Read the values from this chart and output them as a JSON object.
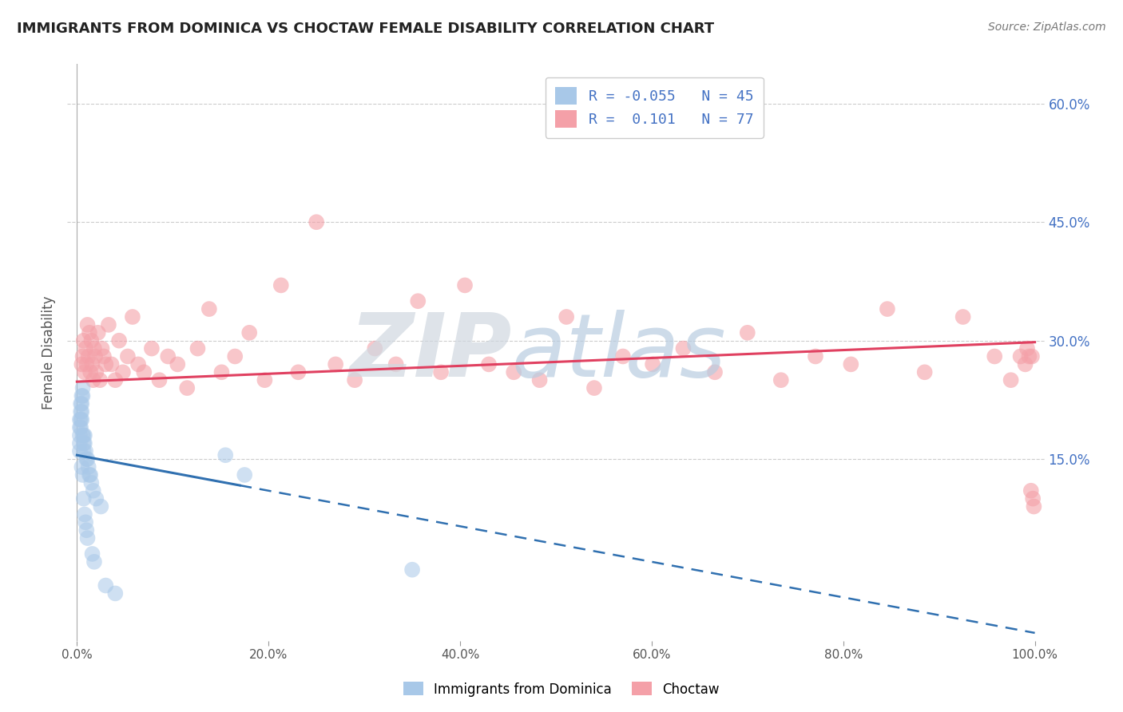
{
  "title": "IMMIGRANTS FROM DOMINICA VS CHOCTAW FEMALE DISABILITY CORRELATION CHART",
  "source": "Source: ZipAtlas.com",
  "ylabel": "Female Disability",
  "legend_labels": [
    "Immigrants from Dominica",
    "Choctaw"
  ],
  "r_blue": -0.055,
  "n_blue": 45,
  "r_pink": 0.101,
  "n_pink": 77,
  "blue_color": "#a8c8e8",
  "pink_color": "#f4a0a8",
  "blue_line_color": "#3070b0",
  "pink_line_color": "#e04060",
  "background_color": "#ffffff",
  "xlim": [
    -0.01,
    1.01
  ],
  "ylim": [
    -0.08,
    0.65
  ],
  "xticks": [
    0.0,
    0.2,
    0.4,
    0.6,
    0.8,
    1.0
  ],
  "xtick_labels": [
    "0.0%",
    "20.0%",
    "40.0%",
    "60.0%",
    "80.0%",
    "100.0%"
  ],
  "ytick_vals_right": [
    0.6,
    0.45,
    0.3,
    0.15
  ],
  "ytick_labels_right": [
    "60.0%",
    "45.0%",
    "30.0%",
    "15.0%"
  ],
  "blue_line_x0": 0.0,
  "blue_line_x1": 1.0,
  "blue_line_y0": 0.155,
  "blue_line_y1": -0.07,
  "blue_line_solid_x1": 0.17,
  "pink_line_x0": 0.0,
  "pink_line_x1": 1.0,
  "pink_line_y0": 0.248,
  "pink_line_y1": 0.298,
  "blue_scatter_x": [
    0.003,
    0.003,
    0.003,
    0.003,
    0.003,
    0.004,
    0.004,
    0.004,
    0.004,
    0.005,
    0.005,
    0.005,
    0.005,
    0.005,
    0.006,
    0.006,
    0.006,
    0.006,
    0.007,
    0.007,
    0.007,
    0.007,
    0.008,
    0.008,
    0.008,
    0.009,
    0.009,
    0.01,
    0.01,
    0.011,
    0.011,
    0.012,
    0.013,
    0.014,
    0.015,
    0.016,
    0.017,
    0.018,
    0.02,
    0.025,
    0.03,
    0.04,
    0.155,
    0.175,
    0.35
  ],
  "blue_scatter_y": [
    0.2,
    0.19,
    0.18,
    0.17,
    0.16,
    0.22,
    0.21,
    0.2,
    0.19,
    0.23,
    0.22,
    0.21,
    0.2,
    0.14,
    0.24,
    0.23,
    0.18,
    0.13,
    0.18,
    0.17,
    0.16,
    0.1,
    0.18,
    0.17,
    0.08,
    0.16,
    0.07,
    0.15,
    0.06,
    0.15,
    0.05,
    0.14,
    0.13,
    0.13,
    0.12,
    0.03,
    0.11,
    0.02,
    0.1,
    0.09,
    -0.01,
    -0.02,
    0.155,
    0.13,
    0.01
  ],
  "pink_scatter_x": [
    0.005,
    0.006,
    0.007,
    0.008,
    0.009,
    0.01,
    0.011,
    0.012,
    0.013,
    0.014,
    0.015,
    0.016,
    0.017,
    0.018,
    0.019,
    0.02,
    0.022,
    0.024,
    0.026,
    0.028,
    0.03,
    0.033,
    0.036,
    0.04,
    0.044,
    0.048,
    0.053,
    0.058,
    0.064,
    0.07,
    0.078,
    0.086,
    0.095,
    0.105,
    0.115,
    0.126,
    0.138,
    0.151,
    0.165,
    0.18,
    0.196,
    0.213,
    0.231,
    0.25,
    0.27,
    0.29,
    0.311,
    0.333,
    0.356,
    0.38,
    0.405,
    0.43,
    0.456,
    0.483,
    0.511,
    0.54,
    0.57,
    0.601,
    0.633,
    0.666,
    0.7,
    0.735,
    0.771,
    0.808,
    0.846,
    0.885,
    0.925,
    0.958,
    0.975,
    0.985,
    0.99,
    0.992,
    0.994,
    0.996,
    0.997,
    0.998,
    0.999
  ],
  "pink_scatter_y": [
    0.27,
    0.28,
    0.3,
    0.26,
    0.29,
    0.27,
    0.32,
    0.28,
    0.31,
    0.26,
    0.3,
    0.27,
    0.25,
    0.29,
    0.28,
    0.26,
    0.31,
    0.25,
    0.29,
    0.28,
    0.27,
    0.32,
    0.27,
    0.25,
    0.3,
    0.26,
    0.28,
    0.33,
    0.27,
    0.26,
    0.29,
    0.25,
    0.28,
    0.27,
    0.24,
    0.29,
    0.34,
    0.26,
    0.28,
    0.31,
    0.25,
    0.37,
    0.26,
    0.45,
    0.27,
    0.25,
    0.29,
    0.27,
    0.35,
    0.26,
    0.37,
    0.27,
    0.26,
    0.25,
    0.33,
    0.24,
    0.28,
    0.27,
    0.29,
    0.26,
    0.31,
    0.25,
    0.28,
    0.27,
    0.34,
    0.26,
    0.33,
    0.28,
    0.25,
    0.28,
    0.27,
    0.29,
    0.28,
    0.11,
    0.28,
    0.1,
    0.09
  ]
}
